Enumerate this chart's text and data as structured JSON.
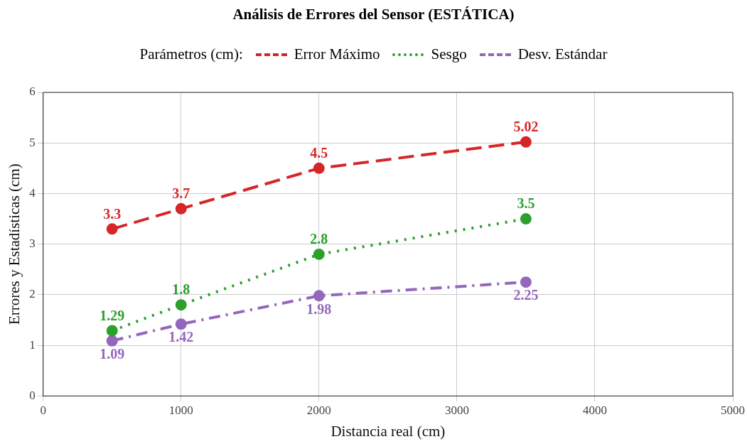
{
  "chart_data": {
    "type": "line",
    "title": "Análisis de Errores del Sensor (ESTÁTICA)",
    "xlabel": "Distancia real (cm)",
    "ylabel": "Errores y Estadísticas (cm)",
    "legend_title": "Parámetros (cm):",
    "legend": "top",
    "grid": true,
    "marker": "circle",
    "data_labels": true,
    "x": [
      500,
      1000,
      2000,
      3500
    ],
    "xlim": [
      0,
      5000
    ],
    "xticks": [
      0,
      1000,
      2000,
      3000,
      4000,
      5000
    ],
    "ylim": [
      0,
      6
    ],
    "yticks": [
      0,
      1,
      2,
      3,
      4,
      5,
      6
    ],
    "series": [
      {
        "name": "Error Máximo",
        "color": "#d62728",
        "line_style": "dashed",
        "values": [
          3.3,
          3.7,
          4.5,
          5.02
        ]
      },
      {
        "name": "Sesgo",
        "color": "#2ca02c",
        "line_style": "dotted",
        "values": [
          1.29,
          1.8,
          2.8,
          3.5
        ]
      },
      {
        "name": "Desv. Estándar",
        "color": "#9467bd",
        "line_style": "dashdot",
        "values": [
          1.09,
          1.42,
          1.98,
          2.25
        ]
      }
    ]
  }
}
